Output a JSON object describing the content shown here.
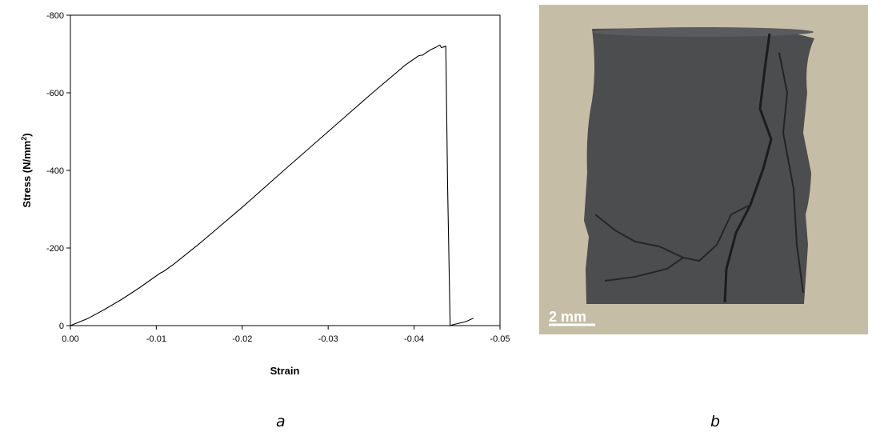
{
  "chart_data": {
    "type": "line",
    "title": "",
    "xlabel": "Strain",
    "ylabel_main": "Stress (N/mm",
    "ylabel_sup": "2",
    "ylabel_end": ")",
    "xlim": [
      0.0,
      -0.05
    ],
    "ylim": [
      0,
      -800
    ],
    "x_ticks": [
      0.0,
      -0.01,
      -0.02,
      -0.03,
      -0.04,
      -0.05
    ],
    "x_tick_labels": [
      "0.00",
      "-0.01",
      "-0.02",
      "-0.03",
      "-0.04",
      "-0.05"
    ],
    "y_ticks": [
      0,
      -200,
      -400,
      -600,
      -800
    ],
    "y_tick_labels": [
      "0",
      "-200",
      "-400",
      "-600",
      "-800"
    ],
    "grid": false,
    "series": [
      {
        "x": [
          0.0,
          -0.002,
          -0.004,
          -0.006,
          -0.008,
          -0.0105,
          -0.0108,
          -0.012,
          -0.015,
          -0.02,
          -0.025,
          -0.03,
          -0.035,
          -0.039,
          -0.0405,
          -0.0408,
          -0.041,
          -0.0415,
          -0.042,
          -0.0425,
          -0.043,
          -0.0432,
          -0.0434,
          -0.0437,
          -0.0437,
          -0.0439,
          -0.0442,
          -0.0445,
          -0.045,
          -0.046,
          -0.0469
        ],
        "y": [
          0,
          -18,
          -42,
          -68,
          -97,
          -136,
          -139,
          -158,
          -211,
          -305,
          -403,
          -500,
          -597,
          -672,
          -695,
          -697,
          -697,
          -705,
          -712,
          -717,
          -723,
          -716,
          -718,
          -720,
          -715,
          -360,
          0,
          -2,
          -5,
          -10,
          -19
        ]
      }
    ]
  },
  "panels": {
    "a_label": "a",
    "b_label": "b"
  },
  "photo": {
    "scale_bar_label": "2 mm",
    "background_color": "#c6bda7",
    "specimen_color": "#4c4d4f"
  }
}
